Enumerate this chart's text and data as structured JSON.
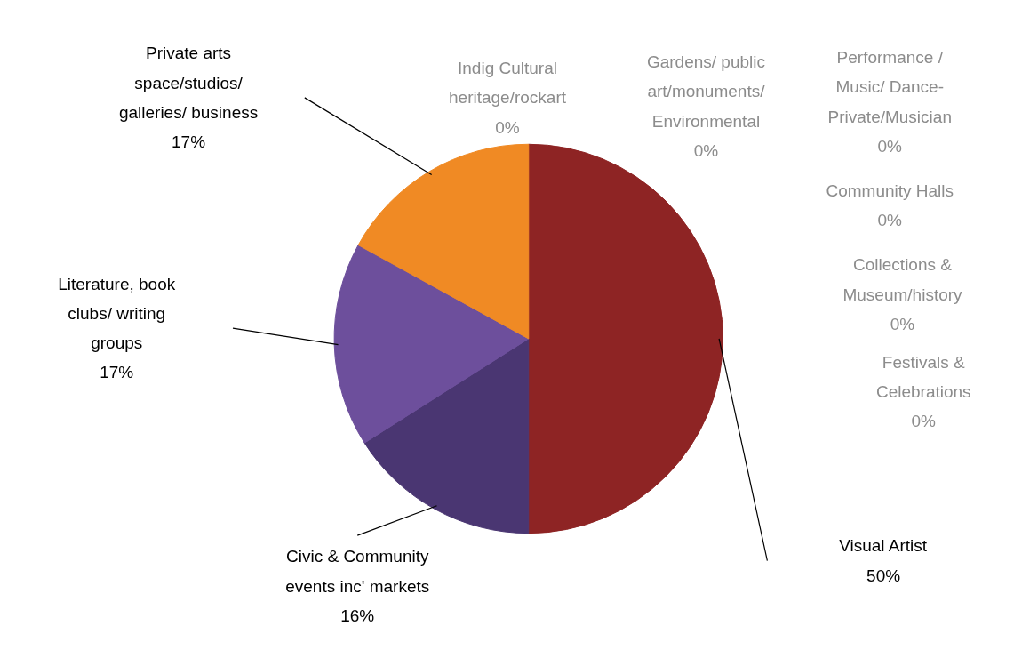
{
  "chart_data": {
    "type": "pie",
    "categories": [
      "Visual Artist",
      "Civic & Community events inc' markets",
      "Literature, book clubs/ writing groups",
      "Private arts space/studios/ galleries/ business",
      "Indig Cultural heritage/rockart",
      "Gardens/ public art/monuments/ Environmental",
      "Performance / Music/ Dance-Private/Musician",
      "Community Halls",
      "Collections & Museum/history",
      "Festivals & Celebrations"
    ],
    "values": [
      50,
      16,
      17,
      17,
      0,
      0,
      0,
      0,
      0,
      0
    ],
    "colors": [
      "#8e2424",
      "#4a3672",
      "#6d4f9c",
      "#f08a24",
      "#4f81bd",
      "#9bbb59",
      "#4bacc6",
      "#f79646",
      "#2c4d75",
      "#772c2a"
    ],
    "value_labels": [
      "50%",
      "16%",
      "17%",
      "17%",
      "0%",
      "0%",
      "0%",
      "0%",
      "0%",
      "0%"
    ]
  }
}
